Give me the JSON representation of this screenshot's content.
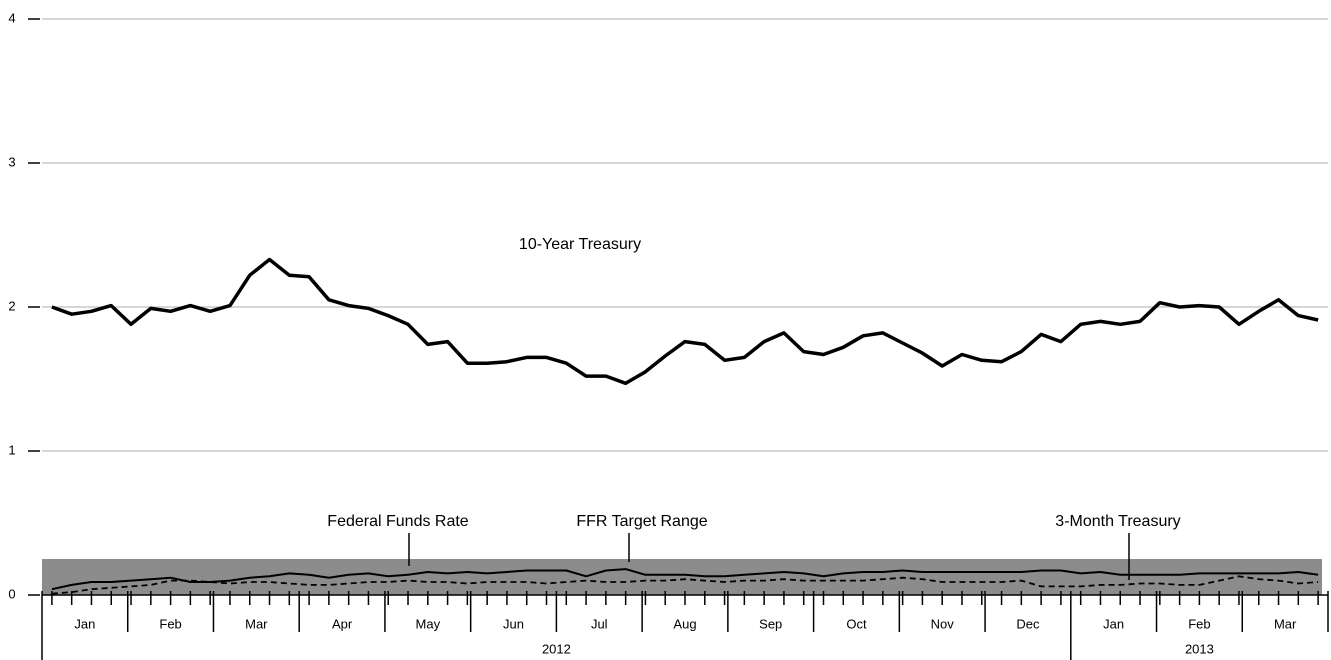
{
  "chart_data": {
    "type": "line",
    "series": [
      {
        "name": "10-Year Treasury",
        "color": "#000000",
        "values": [
          2.0,
          1.95,
          1.97,
          2.01,
          1.88,
          1.99,
          1.97,
          2.01,
          1.97,
          2.01,
          2.22,
          2.33,
          2.22,
          2.21,
          2.05,
          2.01,
          1.99,
          1.94,
          1.88,
          1.74,
          1.76,
          1.61,
          1.61,
          1.62,
          1.65,
          1.65,
          1.61,
          1.52,
          1.52,
          1.47,
          1.55,
          1.66,
          1.76,
          1.74,
          1.63,
          1.65,
          1.76,
          1.82,
          1.69,
          1.67,
          1.72,
          1.8,
          1.82,
          1.75,
          1.68,
          1.59,
          1.67,
          1.63,
          1.62,
          1.69,
          1.81,
          1.76,
          1.88,
          1.9,
          1.88,
          1.9,
          2.03,
          2.0,
          2.01,
          2.0,
          1.88,
          1.97,
          2.05,
          1.94,
          1.91
        ]
      },
      {
        "name": "Federal Funds Rate",
        "color": "#000000",
        "values": [
          0.04,
          0.07,
          0.09,
          0.09,
          0.1,
          0.11,
          0.12,
          0.09,
          0.09,
          0.1,
          0.12,
          0.13,
          0.15,
          0.14,
          0.12,
          0.14,
          0.15,
          0.13,
          0.14,
          0.16,
          0.15,
          0.16,
          0.15,
          0.16,
          0.17,
          0.17,
          0.17,
          0.13,
          0.17,
          0.18,
          0.14,
          0.14,
          0.14,
          0.13,
          0.13,
          0.14,
          0.15,
          0.16,
          0.15,
          0.13,
          0.15,
          0.16,
          0.16,
          0.17,
          0.16,
          0.16,
          0.16,
          0.16,
          0.16,
          0.16,
          0.17,
          0.17,
          0.15,
          0.16,
          0.14,
          0.14,
          0.14,
          0.14,
          0.15,
          0.15,
          0.15,
          0.15,
          0.15,
          0.16,
          0.14
        ]
      },
      {
        "name": "3-Month Treasury",
        "color": "#000000",
        "dashed": true,
        "values": [
          0.01,
          0.02,
          0.04,
          0.05,
          0.06,
          0.07,
          0.1,
          0.1,
          0.09,
          0.08,
          0.09,
          0.09,
          0.08,
          0.07,
          0.07,
          0.08,
          0.09,
          0.09,
          0.1,
          0.09,
          0.09,
          0.08,
          0.09,
          0.09,
          0.09,
          0.08,
          0.09,
          0.1,
          0.09,
          0.09,
          0.1,
          0.1,
          0.11,
          0.1,
          0.09,
          0.1,
          0.1,
          0.11,
          0.1,
          0.1,
          0.1,
          0.1,
          0.11,
          0.12,
          0.11,
          0.09,
          0.09,
          0.09,
          0.09,
          0.1,
          0.06,
          0.06,
          0.06,
          0.07,
          0.07,
          0.08,
          0.08,
          0.07,
          0.07,
          0.1,
          0.13,
          0.11,
          0.1,
          0.08,
          0.09
        ]
      }
    ],
    "band": {
      "name": "FFR Target Range",
      "range": [
        0,
        0.25
      ],
      "color": "#8c8c8c"
    },
    "ylim": [
      0,
      4
    ],
    "yticks": [
      0,
      1,
      2,
      3,
      4
    ],
    "grid": true,
    "months": [
      "Jan",
      "Feb",
      "Mar",
      "Apr",
      "May",
      "Jun",
      "Jul",
      "Aug",
      "Sep",
      "Oct",
      "Nov",
      "Dec",
      "Jan",
      "Feb",
      "Mar"
    ],
    "years": [
      "2012",
      "2013"
    ]
  }
}
